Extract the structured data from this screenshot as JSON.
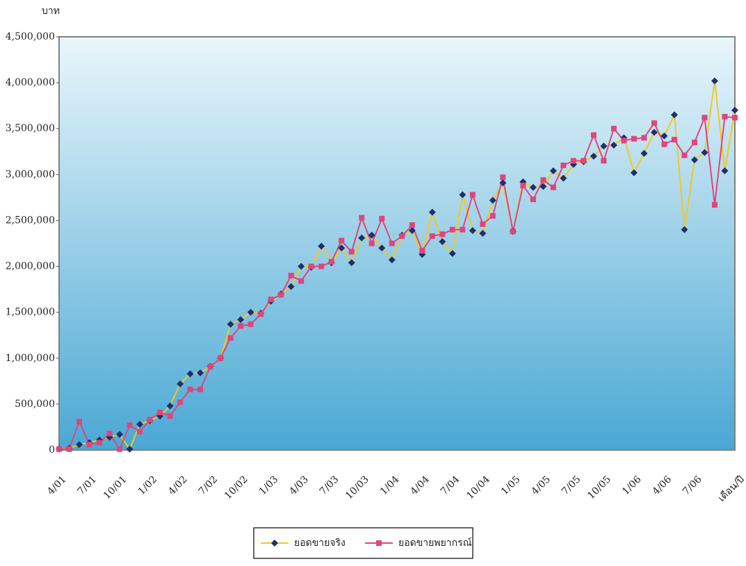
{
  "chart_data": {
    "type": "line",
    "y_label": "บาท",
    "x_label": "เดือน/ปี",
    "categories": [
      "4/01",
      null,
      null,
      "7/01",
      null,
      null,
      "10/01",
      null,
      null,
      "1/02",
      null,
      null,
      "4/02",
      null,
      null,
      "7/02",
      null,
      null,
      "10/02",
      null,
      null,
      "1/03",
      null,
      null,
      "4/03",
      null,
      null,
      "7/03",
      null,
      null,
      "10/03",
      null,
      null,
      "1/04",
      null,
      null,
      "4/04",
      null,
      null,
      "7/04",
      null,
      null,
      "10/04",
      null,
      null,
      "1/05",
      null,
      null,
      "4/05",
      null,
      null,
      "7/05",
      null,
      null,
      "10/05",
      null,
      null,
      "1/06",
      null,
      null,
      "4/06",
      null,
      null,
      "7/06",
      null,
      null,
      null,
      null
    ],
    "series": [
      {
        "name": "ยอดขายจริง",
        "color": "#f2c81e",
        "marker_color": "#1f2f6b",
        "marker": "diamond",
        "values": [
          10000,
          20000,
          60000,
          80000,
          110000,
          140000,
          170000,
          10000,
          280000,
          320000,
          370000,
          480000,
          720000,
          830000,
          840000,
          910000,
          1000000,
          1370000,
          1420000,
          1500000,
          1490000,
          1620000,
          1700000,
          1780000,
          2000000,
          1990000,
          2220000,
          2040000,
          2200000,
          2040000,
          2310000,
          2340000,
          2200000,
          2070000,
          2340000,
          2390000,
          2130000,
          2590000,
          2270000,
          2140000,
          2780000,
          2390000,
          2360000,
          2720000,
          2910000,
          2380000,
          2920000,
          2860000,
          2870000,
          3040000,
          2960000,
          3110000,
          3140000,
          3200000,
          3310000,
          3320000,
          3400000,
          3020000,
          3230000,
          3460000,
          3420000,
          3650000,
          2400000,
          3160000,
          3240000,
          4020000,
          3040000,
          3700000
        ]
      },
      {
        "name": "ยอดขายพยากรณ์",
        "color": "#e0457b",
        "marker_color": "#e0457b",
        "marker": "square",
        "values": [
          10000,
          10000,
          310000,
          60000,
          80000,
          180000,
          10000,
          270000,
          200000,
          330000,
          410000,
          370000,
          520000,
          660000,
          660000,
          910000,
          1000000,
          1220000,
          1350000,
          1370000,
          1480000,
          1640000,
          1690000,
          1900000,
          1840000,
          2000000,
          2000000,
          2050000,
          2280000,
          2160000,
          2530000,
          2250000,
          2520000,
          2250000,
          2330000,
          2450000,
          2170000,
          2330000,
          2350000,
          2400000,
          2400000,
          2780000,
          2460000,
          2550000,
          2970000,
          2380000,
          2880000,
          2730000,
          2940000,
          2860000,
          3100000,
          3150000,
          3150000,
          3430000,
          3150000,
          3500000,
          3370000,
          3390000,
          3400000,
          3560000,
          3330000,
          3380000,
          3210000,
          3350000,
          3620000,
          2670000,
          3630000,
          3620000
        ]
      }
    ],
    "ylim": [
      0,
      4500000
    ],
    "yticks": [
      0,
      {
        "value": 500000,
        "label": "500,000"
      },
      {
        "value": 1000000,
        "label": "1,000,000"
      },
      {
        "value": 1500000,
        "label": "1,500,000"
      },
      {
        "value": 2000000,
        "label": "2,000,000"
      },
      {
        "value": 2500000,
        "label": "2,500,000"
      },
      {
        "value": 3000000,
        "label": "3,000,000"
      },
      {
        "value": 3500000,
        "label": "3,500,000"
      },
      {
        "value": 4000000,
        "label": "4,000,000"
      },
      {
        "value": 4500000,
        "label": "4,500,000"
      }
    ],
    "grid": false,
    "legend": "bottom"
  }
}
